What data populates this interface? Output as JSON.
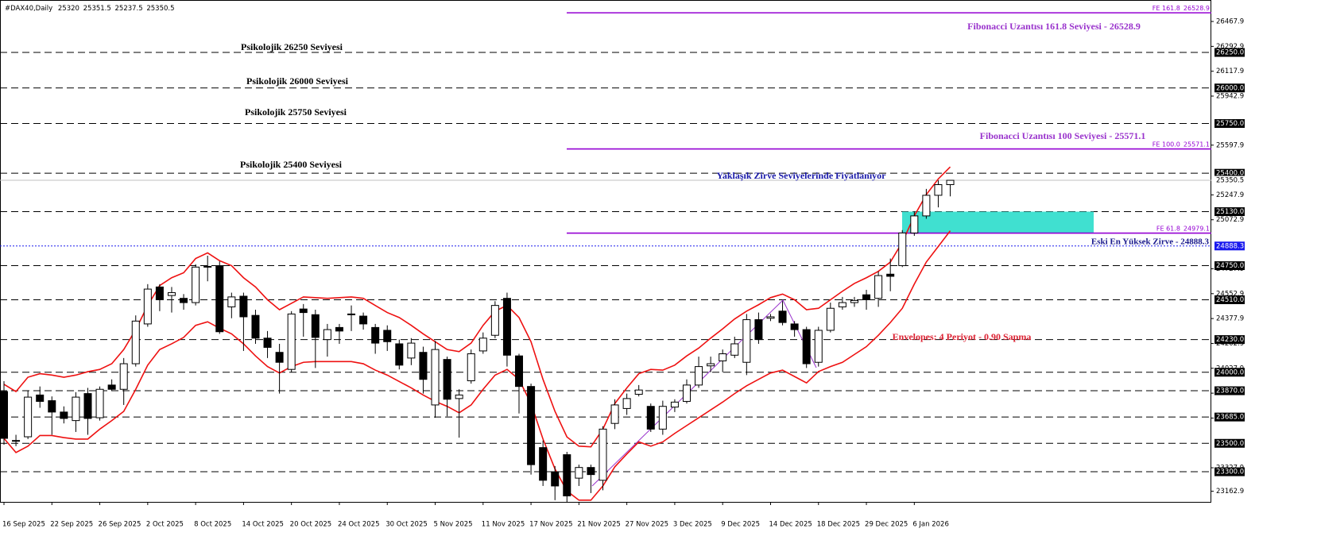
{
  "chart_data": {
    "type": "candlestick",
    "title": "#DAX40,Daily",
    "categories": [
      "16 Sep 2025",
      null,
      null,
      null,
      "22 Sep 2025",
      null,
      null,
      null,
      "26 Sep 2025",
      null,
      null,
      null,
      "2 Oct 2025",
      null,
      null,
      null,
      "8 Oct 2025",
      null,
      null,
      null,
      "14 Oct 2025",
      null,
      null,
      null,
      "20 Oct 2025",
      null,
      null,
      null,
      "24 Oct 2025",
      null,
      null,
      null,
      "30 Oct 2025",
      null,
      null,
      null,
      "5 Nov 2025",
      null,
      null,
      null,
      "11 Nov 2025",
      null,
      null,
      null,
      "17 Nov 2025",
      null,
      null,
      null,
      "21 Nov 2025",
      null,
      null,
      null,
      "27 Nov 2025",
      null,
      null,
      null,
      "3 Dec 2025",
      null,
      null,
      null,
      "9 Dec 2025",
      null,
      null,
      null,
      "14 Dec 2025",
      null,
      null,
      null,
      "18 Dec 2025",
      null,
      null,
      null,
      "29 Dec 2025",
      null,
      null,
      null,
      "6 Jan 2026",
      null,
      null,
      null
    ],
    "open": [
      23864,
      23515,
      23546,
      23840,
      23800,
      23720,
      23660,
      23850,
      23680,
      23910,
      23880,
      24060,
      24340,
      24600,
      24540,
      24520,
      24490,
      24745,
      24750,
      24460,
      24535,
      24400,
      24240,
      24140,
      24020,
      24445,
      24405,
      24230,
      24315,
      24405,
      24395,
      24315,
      24295,
      24200,
      24100,
      24140,
      23770,
      24090,
      23815,
      23940,
      24150,
      24260,
      24520,
      24115,
      23900,
      23470,
      23300,
      23420,
      23255,
      23330,
      23240,
      23640,
      23745,
      23845,
      23760,
      23600,
      23755,
      23795,
      23910,
      24045,
      24080,
      24120,
      24070,
      24370,
      24380,
      24430,
      24340,
      24300,
      24070,
      24295,
      24460,
      24490,
      24545,
      24520,
      24690,
      24750,
      24980,
      25100,
      25245,
      25320
    ],
    "high": [
      23937,
      23560,
      23870,
      23900,
      23830,
      23760,
      23860,
      23890,
      23900,
      23950,
      24100,
      24400,
      24620,
      24620,
      24600,
      24550,
      24760,
      24820,
      24780,
      24560,
      24560,
      24440,
      24290,
      24200,
      24430,
      24480,
      24440,
      24340,
      24340,
      24470,
      24420,
      24340,
      24330,
      24230,
      24240,
      24180,
      24220,
      24110,
      23880,
      24160,
      24280,
      24500,
      24560,
      24130,
      23920,
      23520,
      23340,
      23440,
      23350,
      23350,
      23620,
      23810,
      23850,
      23910,
      23780,
      23800,
      23810,
      23950,
      24110,
      24110,
      24160,
      24250,
      24410,
      24420,
      24410,
      24500,
      24360,
      24320,
      24320,
      24490,
      24530,
      24530,
      24580,
      24710,
      24800,
      25000,
      25130,
      25290,
      25350,
      25351.5
    ],
    "low": [
      23490,
      23480,
      23530,
      23750,
      23560,
      23640,
      23580,
      23560,
      23660,
      23870,
      23770,
      24040,
      24320,
      24430,
      24420,
      24440,
      24470,
      24640,
      24270,
      24380,
      24150,
      24200,
      24100,
      23850,
      24000,
      24250,
      24030,
      24110,
      24200,
      24290,
      24300,
      24130,
      24150,
      24020,
      24050,
      23850,
      23680,
      23690,
      23540,
      23920,
      24130,
      24240,
      24040,
      23710,
      23280,
      23200,
      23100,
      23050,
      23200,
      23150,
      23170,
      23600,
      23700,
      23830,
      23580,
      23560,
      23720,
      23780,
      23890,
      24000,
      24000,
      24100,
      23980,
      24200,
      24360,
      24330,
      24250,
      24030,
      24040,
      24280,
      24440,
      24460,
      24440,
      24460,
      24570,
      24740,
      24960,
      25080,
      25160,
      25237.5
    ],
    "close": [
      23535,
      23520,
      23825,
      23795,
      23720,
      23675,
      23825,
      23675,
      23880,
      23880,
      24060,
      24360,
      24585,
      24510,
      24560,
      24490,
      24740,
      24740,
      24285,
      24530,
      24390,
      24240,
      24175,
      24070,
      24410,
      24420,
      24245,
      24300,
      24290,
      24410,
      24340,
      24205,
      24215,
      24050,
      24205,
      23950,
      24160,
      23810,
      23840,
      24130,
      24240,
      24470,
      24120,
      23900,
      23350,
      23240,
      23200,
      23130,
      23330,
      23280,
      23600,
      23770,
      23815,
      23875,
      23600,
      23760,
      23790,
      23910,
      24040,
      24060,
      24130,
      24200,
      24370,
      24230,
      24390,
      24350,
      24300,
      24060,
      24295,
      24450,
      24490,
      24505,
      24510,
      24680,
      24675,
      24980,
      25100,
      25245,
      25320,
      25350.5
    ],
    "up_color": "#ffffff",
    "down_color": "#000000",
    "series": [
      {
        "color": "#ee1111",
        "values": [
          23915,
          23864,
          23965,
          23990,
          23980,
          23965,
          23980,
          24004,
          24020,
          24060,
          24160,
          24300,
          24470,
          24610,
          24665,
          24700,
          24800,
          24840,
          24785,
          24750,
          24665,
          24600,
          24510,
          24440,
          24485,
          24530,
          24525,
          24520,
          24525,
          24530,
          24520,
          24470,
          24420,
          24385,
          24330,
          24270,
          24215,
          24160,
          24145,
          24205,
          24330,
          24430,
          24470,
          24385,
          24215,
          23950,
          23725,
          23545,
          23480,
          23475,
          23600,
          23780,
          23890,
          23990,
          24020,
          24015,
          24050,
          24115,
          24170,
          24240,
          24305,
          24375,
          24430,
          24475,
          24525,
          24550,
          24510,
          24440,
          24450,
          24510,
          24570,
          24625,
          24665,
          24710,
          24775,
          24915,
          25100,
          25250,
          25360,
          25445
        ]
      },
      {
        "color": "#ee1111",
        "values": [
          23535,
          23435,
          23480,
          23555,
          23555,
          23540,
          23530,
          23530,
          23600,
          23660,
          23725,
          23880,
          24050,
          24160,
          24200,
          24245,
          24330,
          24355,
          24310,
          24270,
          24200,
          24115,
          24040,
          23995,
          24040,
          24070,
          24075,
          24075,
          24075,
          24075,
          24060,
          24015,
          23980,
          23935,
          23890,
          23840,
          23795,
          23760,
          23715,
          23770,
          23880,
          23980,
          24020,
          23950,
          23780,
          23530,
          23320,
          23165,
          23100,
          23100,
          23200,
          23335,
          23425,
          23510,
          23480,
          23510,
          23570,
          23625,
          23680,
          23735,
          23790,
          23850,
          23905,
          23950,
          23995,
          24015,
          23970,
          23925,
          24005,
          24040,
          24070,
          24125,
          24180,
          24260,
          24350,
          24450,
          24620,
          24775,
          24885,
          24995
        ]
      }
    ],
    "ylim": [
      23088,
      26619
    ],
    "yticks": [
      {
        "value": 26467.9,
        "label": "26467.9"
      },
      {
        "value": 26292.9,
        "label": "26292.9"
      },
      {
        "value": 26117.9,
        "label": "26117.9"
      },
      {
        "value": 25942.9,
        "label": "25942.9"
      },
      {
        "value": 25597.9,
        "label": "25597.9"
      },
      {
        "value": 25247.9,
        "label": "25247.9"
      },
      {
        "value": 25072.9,
        "label": "25072.9"
      },
      {
        "value": 24727.9,
        "label": "24727.9"
      },
      {
        "value": 24552.9,
        "label": "24552.9"
      },
      {
        "value": 24377.9,
        "label": "24377.9"
      },
      {
        "value": 24202.9,
        "label": "24202.9"
      },
      {
        "value": 24027.9,
        "label": "24027.9"
      },
      {
        "value": 23852.9,
        "label": "23852.9"
      },
      {
        "value": 23677.9,
        "label": "23677.9"
      },
      {
        "value": 23327.9,
        "label": "23327.9"
      },
      {
        "value": 23162.9,
        "label": "23162.9"
      }
    ],
    "levels": [
      {
        "value": 26250,
        "label": "26250.0"
      },
      {
        "value": 26000,
        "label": "26000.0"
      },
      {
        "value": 25750,
        "label": "25750.0"
      },
      {
        "value": 25400,
        "label": "25400.0"
      },
      {
        "value": 25130,
        "label": "25130.0"
      },
      {
        "value": 24750,
        "label": "24750.0"
      },
      {
        "value": 24510,
        "label": "24510.0"
      },
      {
        "value": 24230,
        "label": "24230.0"
      },
      {
        "value": 24000,
        "label": "24000.0"
      },
      {
        "value": 23870,
        "label": "23870.0"
      },
      {
        "value": 23685,
        "label": "23685.0"
      },
      {
        "value": 23500,
        "label": "23500.0"
      },
      {
        "value": 23300,
        "label": "23300.0"
      }
    ],
    "previous_high": {
      "value": 24888.3,
      "color": "#1a1aee"
    },
    "fib_levels": [
      {
        "name": "FE 161.8",
        "value": 26528.9
      },
      {
        "name": "FE 100.0",
        "value": 25571.1
      },
      {
        "name": "FE 61.8",
        "value": 24979.1
      }
    ],
    "fib_color": "#9400d3",
    "zone_color": "#40e0d0",
    "annotations": [
      {
        "text": "Psikolojik 26250 Seviyesi",
        "color": "#000000"
      },
      {
        "text": "Psikolojik 26000 Seviyesi",
        "color": "#000000"
      },
      {
        "text": "Psikolojik 25750 Seviyesi",
        "color": "#000000"
      },
      {
        "text": "Psikolojik 25400 Seviyesi",
        "color": "#000000"
      },
      {
        "text": "Fibonacci Uzantısı 161.8 Seviyesi - 26528.9",
        "color": "#9932cc"
      },
      {
        "text": "Fibonacci Uzantısı 100 Seviyesi - 25571.1",
        "color": "#9932cc"
      },
      {
        "text": "Yaklaşık Zirve Seviyelerinde Fiyatlanıyor",
        "color": "#1a1aaa"
      },
      {
        "text": "Eski En Yüksek Zirve - 24888.3",
        "color": "#1a1a8c"
      },
      {
        "text": "Envelopes: 4 Periyot - 0.90 Sapma",
        "color": "#dd2233"
      }
    ]
  }
}
